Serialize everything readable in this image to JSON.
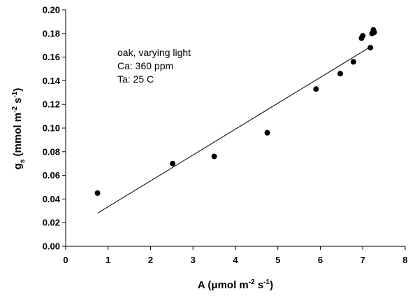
{
  "chart_data": {
    "type": "scatter",
    "title": "",
    "xlabel": "A (μmol m⁻² s⁻¹)",
    "ylabel": "gₛ (mmol m⁻² s⁻¹)",
    "xlabel_parts": {
      "pre": "A (",
      "mu": "μ",
      "mid": "mol m",
      "sup1": "-2",
      "mid2": " s",
      "sup2": "-1",
      "post": ")"
    },
    "ylabel_parts": {
      "g": "g",
      "sub": "s",
      "pre": "  (mmol m",
      "sup1": "-2",
      "mid": " s",
      "sup2": "-1",
      "post": ")"
    },
    "xlim": [
      0,
      8
    ],
    "ylim": [
      0,
      0.2
    ],
    "x_ticks": [
      "0",
      "1",
      "2",
      "3",
      "4",
      "5",
      "6",
      "7",
      "8"
    ],
    "y_ticks": [
      "0.00",
      "0.02",
      "0.04",
      "0.06",
      "0.08",
      "0.10",
      "0.12",
      "0.14",
      "0.16",
      "0.18",
      "0.20"
    ],
    "grid": false,
    "annotations": [
      "oak, varying light",
      "Ca: 360 ppm",
      "Ta: 25 C"
    ],
    "series": [
      {
        "x": [
          0.75,
          2.52,
          3.5,
          4.75,
          5.9,
          6.47,
          6.78,
          6.97,
          7.0,
          7.18,
          7.22,
          7.25,
          7.27
        ],
        "y": [
          0.045,
          0.07,
          0.076,
          0.096,
          0.133,
          0.146,
          0.156,
          0.176,
          0.178,
          0.168,
          0.18,
          0.183,
          0.181
        ]
      }
    ],
    "fit_line": {
      "x": [
        0.75,
        7.15
      ],
      "y": [
        0.028,
        0.168
      ]
    },
    "colors": {
      "marker": "#000000",
      "line": "#000000",
      "axis": "#000000"
    }
  }
}
